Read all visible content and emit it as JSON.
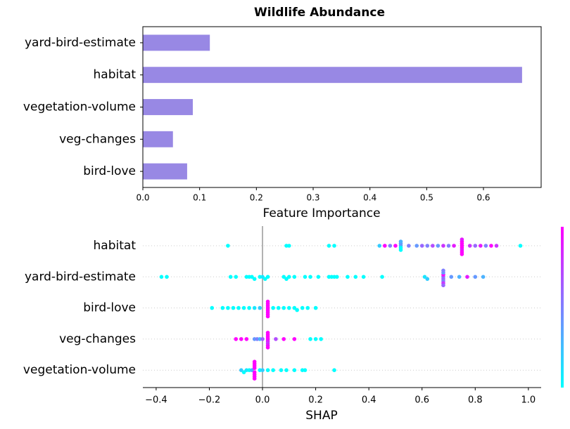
{
  "chart_data": [
    {
      "type": "barh",
      "title": "Wildlife Abundance",
      "xlabel": "Feature Importance",
      "categories": [
        "yard-bird-estimate",
        "habitat",
        "vegetation-volume",
        "veg-changes",
        "bird-love"
      ],
      "values": [
        0.118,
        0.668,
        0.088,
        0.053,
        0.078
      ],
      "color": "#9888e4",
      "xlim": [
        0,
        0.7016
      ],
      "xticks": [
        {
          "value": 0,
          "label": "0.0"
        },
        0.1,
        0.2,
        0.3,
        0.4,
        0.5,
        0.6
      ]
    },
    {
      "type": "beeswarm",
      "xlabel": "SHAP",
      "colormap": "cool",
      "xlim": [
        -0.45,
        1.048
      ],
      "xticks": [
        {
          "value": -0.4,
          "label": "−0.4"
        },
        {
          "value": -0.2,
          "label": "−0.2"
        },
        {
          "value": 0,
          "label": "0.0"
        },
        0.2,
        0.4,
        0.6,
        0.8,
        {
          "value": 1,
          "label": "1.0"
        }
      ],
      "rows": [
        {
          "name": "habitat",
          "shap": [
            -0.13,
            0.09,
            0.1,
            0.25,
            0.27,
            0.44,
            0.46,
            0.48,
            0.5,
            0.52,
            0.52,
            0.52,
            0.52,
            0.52,
            0.55,
            0.58,
            0.6,
            0.62,
            0.64,
            0.66,
            0.68,
            0.7,
            0.72,
            0.75,
            0.75,
            0.75,
            0.75,
            0.75,
            0.75,
            0.75,
            0.75,
            0.78,
            0.8,
            0.82,
            0.84,
            0.86,
            0.88,
            0.97
          ],
          "feature_value": [
            0,
            0,
            0,
            0,
            0,
            0.2,
            1,
            0.5,
            1,
            0.3,
            0,
            0.4,
            0,
            0.3,
            0.5,
            0.4,
            0.6,
            0.5,
            0.7,
            0.4,
            0.8,
            0.5,
            0.9,
            1,
            1,
            1,
            0.9,
            1,
            1,
            0.9,
            1,
            0.8,
            0.6,
            0.9,
            0.5,
            1,
            0.8,
            0
          ]
        },
        {
          "name": "yard-bird-estimate",
          "shap": [
            -0.38,
            -0.36,
            -0.12,
            -0.1,
            -0.06,
            -0.05,
            -0.04,
            -0.03,
            -0.01,
            0,
            0.01,
            0.02,
            0.08,
            0.09,
            0.1,
            0.12,
            0.16,
            0.18,
            0.21,
            0.25,
            0.26,
            0.27,
            0.28,
            0.32,
            0.35,
            0.38,
            0.45,
            0.61,
            0.62,
            0.68,
            0.68,
            0.68,
            0.68,
            0.68,
            0.68,
            0.68,
            0.68,
            0.71,
            0.74,
            0.77,
            0.8,
            0.83
          ],
          "feature_value": [
            0,
            0,
            0,
            0,
            0,
            0,
            0,
            0,
            0,
            0.1,
            0,
            0,
            0,
            0,
            0,
            0,
            0,
            0,
            0,
            0,
            0,
            0,
            0,
            0,
            0,
            0,
            0,
            0.1,
            0.2,
            0.5,
            0.6,
            1,
            0.5,
            0.4,
            0.8,
            0.5,
            0.6,
            0.4,
            0.3,
            0.9,
            0.4,
            0.3
          ]
        },
        {
          "name": "bird-love",
          "shap": [
            -0.19,
            -0.15,
            -0.13,
            -0.11,
            -0.09,
            -0.07,
            -0.05,
            -0.03,
            -0.01,
            0.02,
            0.02,
            0.02,
            0.02,
            0.02,
            0.02,
            0.02,
            0.02,
            0.04,
            0.06,
            0.08,
            0.1,
            0.12,
            0.13,
            0.15,
            0.17,
            0.2
          ],
          "feature_value": [
            0,
            0,
            0,
            0,
            0,
            0,
            0,
            0.1,
            0.2,
            1,
            1,
            1,
            1,
            1,
            1,
            1,
            1,
            0,
            0,
            0,
            0,
            0,
            0,
            0,
            0,
            0
          ]
        },
        {
          "name": "veg-changes",
          "shap": [
            -0.1,
            -0.08,
            -0.06,
            -0.03,
            -0.02,
            -0.01,
            0,
            0.02,
            0.02,
            0.02,
            0.02,
            0.02,
            0.02,
            0.02,
            0.02,
            0.05,
            0.08,
            0.12,
            0.18,
            0.2,
            0.22
          ],
          "feature_value": [
            1,
            1,
            1,
            0.4,
            0.5,
            0.3,
            0.6,
            1,
            0.9,
            1,
            0.8,
            1,
            0.9,
            1,
            1,
            0.7,
            1,
            1,
            0,
            0,
            0
          ]
        },
        {
          "name": "vegetation-volume",
          "shap": [
            -0.08,
            -0.07,
            -0.06,
            -0.05,
            -0.04,
            -0.03,
            -0.03,
            -0.03,
            -0.03,
            -0.03,
            -0.03,
            -0.03,
            -0.03,
            -0.01,
            0,
            0.02,
            0.04,
            0.07,
            0.09,
            0.12,
            0.15,
            0.16,
            0.27
          ],
          "feature_value": [
            0.2,
            0,
            0.1,
            0,
            0.3,
            1,
            1,
            1,
            1,
            1,
            1,
            1,
            1,
            0,
            0.2,
            0,
            0,
            0,
            0,
            0,
            0,
            0,
            0
          ]
        }
      ]
    }
  ]
}
